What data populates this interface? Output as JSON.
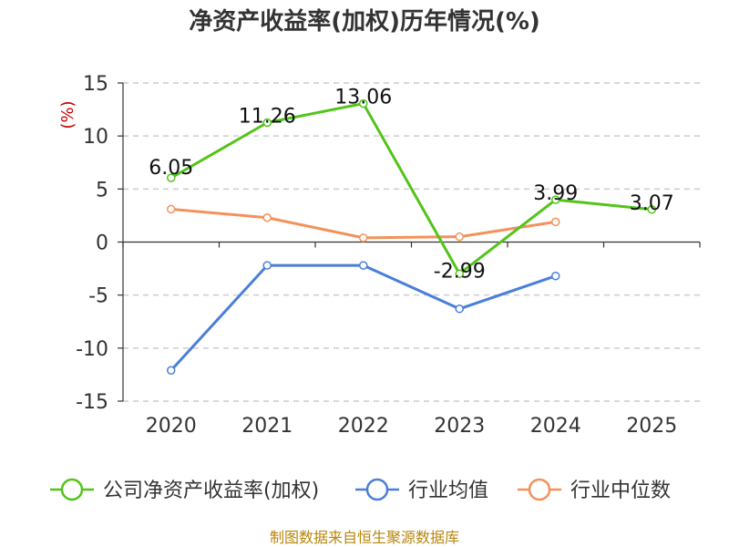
{
  "chart_data": {
    "type": "line",
    "title": "净资产收益率(加权)历年情况(%)",
    "ylabel": "(%)",
    "xlabel": "",
    "categories": [
      "2020",
      "2021",
      "2022",
      "2023",
      "2024",
      "2025"
    ],
    "ylim": [
      -15,
      15
    ],
    "yticks": [
      15,
      10,
      5,
      0,
      -5,
      -10,
      -15
    ],
    "grid": true,
    "legend_position": "bottom",
    "series": [
      {
        "name": "公司净资产收益率(加权)",
        "color": "#52c41a",
        "values": [
          6.05,
          11.26,
          13.06,
          -2.99,
          3.99,
          3.07
        ],
        "labels": [
          "6.05",
          "11.26",
          "13.06",
          "-2.99",
          "3.99",
          "3.07"
        ]
      },
      {
        "name": "行业均值",
        "color": "#4a7fd9",
        "values": [
          -12.1,
          -2.2,
          -2.2,
          -6.3,
          -3.2,
          null
        ]
      },
      {
        "name": "行业中位数",
        "color": "#f4915a",
        "values": [
          3.1,
          2.3,
          0.4,
          0.5,
          1.9,
          null
        ]
      }
    ],
    "source": "制图数据来自恒生聚源数据库"
  }
}
